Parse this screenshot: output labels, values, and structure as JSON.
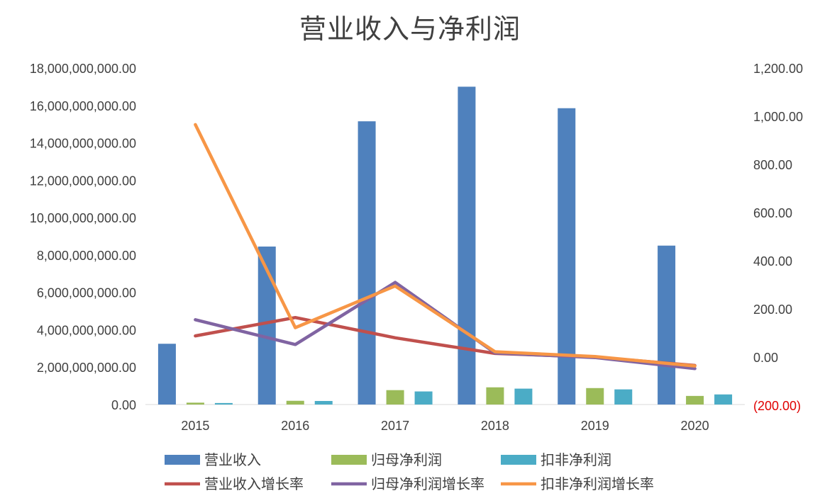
{
  "chart_data": {
    "type": "bar",
    "title": "营业收入与净利润",
    "categories": [
      "2015",
      "2016",
      "2017",
      "2018",
      "2019",
      "2020"
    ],
    "series": [
      {
        "name": "营业收入",
        "axis": "left",
        "kind": "bar",
        "color": "#4f81bd",
        "values": [
          3250000000,
          8450000000,
          15150000000,
          17000000000,
          15850000000,
          8500000000
        ]
      },
      {
        "name": "归母净利润",
        "axis": "left",
        "kind": "bar",
        "color": "#9bbb59",
        "values": [
          100000000,
          200000000,
          770000000,
          920000000,
          880000000,
          460000000
        ]
      },
      {
        "name": "扣非净利润",
        "axis": "left",
        "kind": "bar",
        "color": "#4bacc6",
        "values": [
          80000000,
          190000000,
          700000000,
          850000000,
          810000000,
          540000000
        ]
      },
      {
        "name": "营业收入增长率",
        "axis": "right",
        "kind": "line",
        "color": "#c0504d",
        "values": [
          88,
          164,
          80,
          15,
          0,
          -35
        ]
      },
      {
        "name": "归母净利润增长率",
        "axis": "right",
        "kind": "line",
        "color": "#8064a2",
        "values": [
          155,
          52,
          310,
          17,
          -2,
          -48
        ]
      },
      {
        "name": "扣非净利润增长率",
        "axis": "right",
        "kind": "line",
        "color": "#f79646",
        "values": [
          965,
          122,
          295,
          22,
          2,
          -37
        ]
      }
    ],
    "y_left": {
      "min": 0,
      "max": 18000000000,
      "step": 2000000000,
      "tick_labels": [
        "0.00",
        "2,000,000,000.00",
        "4,000,000,000.00",
        "6,000,000,000.00",
        "8,000,000,000.00",
        "10,000,000,000.00",
        "12,000,000,000.00",
        "14,000,000,000.00",
        "16,000,000,000.00",
        "18,000,000,000.00"
      ]
    },
    "y_right": {
      "min": -200,
      "max": 1200,
      "step": 200,
      "tick_labels": [
        "(200.00)",
        "0.00",
        "200.00",
        "400.00",
        "600.00",
        "800.00",
        "1,000.00",
        "1,200.00"
      ],
      "negative_color": "#e00000"
    },
    "grid": false,
    "legend": "bottom"
  }
}
